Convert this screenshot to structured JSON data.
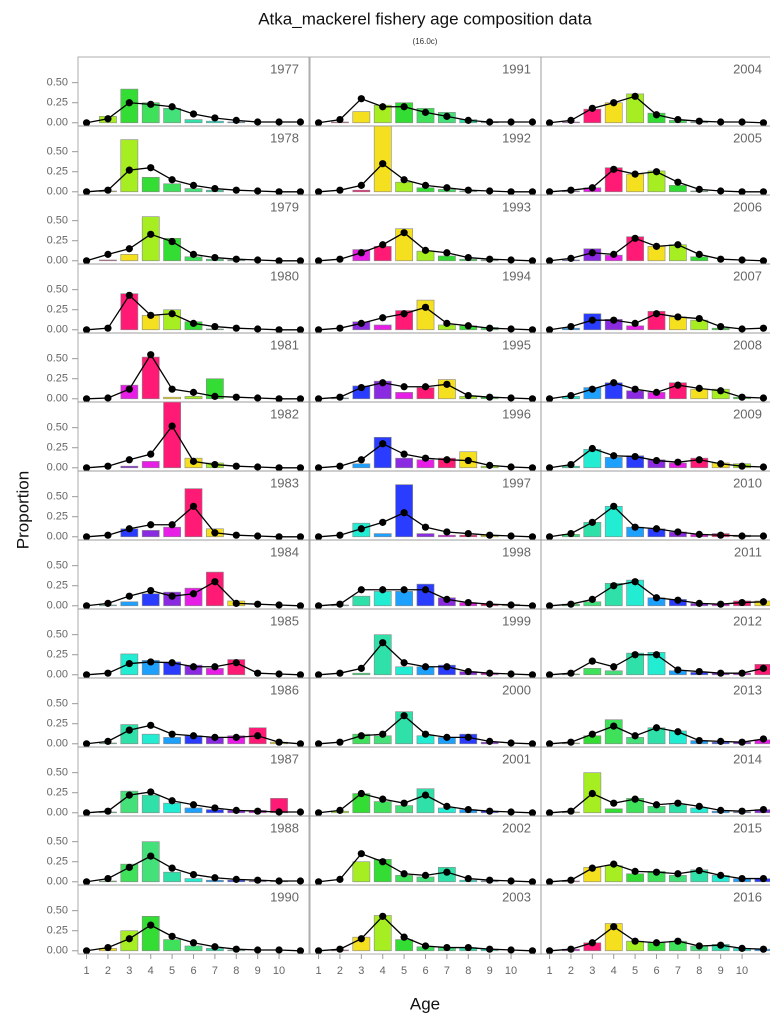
{
  "chart_data": {
    "type": "bar",
    "title": "Atka_mackerel fishery age composition data",
    "subtitle": "(16.0c)",
    "x_label": "Age",
    "y_label": "Proportion",
    "x": [
      1,
      2,
      3,
      4,
      5,
      6,
      7,
      8,
      9,
      10,
      11
    ],
    "xlim": [
      0.6,
      11.4
    ],
    "xticks": [
      1,
      2,
      3,
      4,
      5,
      6,
      7,
      8,
      9,
      10
    ],
    "ylim": [
      -0.04,
      0.82
    ],
    "yticks": [
      {
        "value": 0,
        "label": "0.00"
      },
      {
        "value": 0.25,
        "label": "0.25"
      },
      {
        "value": 0.5,
        "label": "0.50"
      }
    ],
    "palette": [
      "#2a3cff",
      "#1ea0ff",
      "#22ecd2",
      "#2fe0a8",
      "#44e07a",
      "#3fe05a",
      "#33dd33",
      "#a6ee22",
      "#f5e020",
      "#ff1a75",
      "#e61ee6",
      "#8a2be2"
    ],
    "line_color": "#000000",
    "panels": [
      {
        "label": "1977",
        "values": [
          0,
          0.08,
          0.42,
          0.25,
          0.18,
          0.04,
          0.02,
          0.01,
          0,
          0,
          0
        ],
        "fit": [
          0,
          0.05,
          0.25,
          0.23,
          0.2,
          0.11,
          0.06,
          0.03,
          0.01,
          0.01,
          0.01
        ]
      },
      {
        "label": "1978",
        "values": [
          0,
          0.01,
          0.65,
          0.18,
          0.1,
          0.04,
          0.02,
          0,
          0,
          0,
          0
        ],
        "fit": [
          0,
          0.02,
          0.27,
          0.3,
          0.15,
          0.08,
          0.04,
          0.02,
          0.01,
          0,
          0
        ]
      },
      {
        "label": "1979",
        "values": [
          0,
          0.01,
          0.08,
          0.55,
          0.28,
          0.05,
          0.02,
          0.01,
          0,
          0,
          0
        ],
        "fit": [
          0,
          0.08,
          0.15,
          0.33,
          0.24,
          0.08,
          0.04,
          0.02,
          0.01,
          0,
          0
        ]
      },
      {
        "label": "1980",
        "values": [
          0,
          0,
          0.45,
          0.18,
          0.25,
          0.1,
          0.01,
          0,
          0,
          0,
          0
        ],
        "fit": [
          0,
          0.02,
          0.43,
          0.18,
          0.2,
          0.08,
          0.04,
          0.02,
          0.01,
          0,
          0
        ]
      },
      {
        "label": "1981",
        "values": [
          0,
          0,
          0.17,
          0.52,
          0.02,
          0.03,
          0.25,
          0,
          0,
          0,
          0
        ],
        "fit": [
          0,
          0.01,
          0.12,
          0.55,
          0.12,
          0.08,
          0.03,
          0.02,
          0.01,
          0,
          0
        ]
      },
      {
        "label": "1982",
        "values": [
          0,
          0,
          0.02,
          0.08,
          0.9,
          0.12,
          0.06,
          0,
          0,
          0,
          0
        ],
        "fit": [
          0,
          0.02,
          0.1,
          0.17,
          0.52,
          0.08,
          0.04,
          0.02,
          0.01,
          0,
          0
        ]
      },
      {
        "label": "1983",
        "values": [
          0,
          0,
          0.1,
          0.08,
          0.12,
          0.6,
          0.1,
          0,
          0,
          0,
          0
        ],
        "fit": [
          0,
          0.02,
          0.1,
          0.15,
          0.15,
          0.38,
          0.05,
          0.02,
          0.01,
          0,
          0
        ]
      },
      {
        "label": "1984",
        "values": [
          0,
          0.01,
          0.05,
          0.15,
          0.17,
          0.22,
          0.42,
          0.06,
          0,
          0,
          0
        ],
        "fit": [
          0,
          0.03,
          0.12,
          0.19,
          0.12,
          0.15,
          0.3,
          0.03,
          0.02,
          0.01,
          0
        ]
      },
      {
        "label": "1985",
        "values": [
          0,
          0,
          0.26,
          0.18,
          0.16,
          0.12,
          0.08,
          0.19,
          0,
          0,
          0
        ],
        "fit": [
          0,
          0.02,
          0.14,
          0.16,
          0.15,
          0.1,
          0.1,
          0.15,
          0.02,
          0.01,
          0
        ]
      },
      {
        "label": "1986",
        "values": [
          0,
          0.01,
          0.24,
          0.12,
          0.08,
          0.1,
          0.08,
          0.1,
          0.2,
          0.02,
          0
        ],
        "fit": [
          0,
          0.03,
          0.17,
          0.23,
          0.12,
          0.1,
          0.08,
          0.08,
          0.1,
          0.02,
          0
        ]
      },
      {
        "label": "1987",
        "values": [
          0,
          0.01,
          0.27,
          0.22,
          0.12,
          0.06,
          0.04,
          0.03,
          0.03,
          0.18,
          0
        ],
        "fit": [
          0,
          0.02,
          0.22,
          0.26,
          0.15,
          0.1,
          0.06,
          0.03,
          0.02,
          0.01,
          0.01
        ]
      },
      {
        "label": "1988",
        "values": [
          0,
          0.01,
          0.22,
          0.5,
          0.12,
          0.04,
          0.02,
          0.02,
          0.01,
          0.01,
          0
        ],
        "fit": [
          0,
          0.04,
          0.18,
          0.32,
          0.17,
          0.09,
          0.05,
          0.03,
          0.02,
          0.01,
          0.01
        ]
      },
      {
        "label": "1990",
        "values": [
          0,
          0.03,
          0.25,
          0.43,
          0.14,
          0.06,
          0.03,
          0.01,
          0,
          0,
          0
        ],
        "fit": [
          0,
          0.04,
          0.15,
          0.32,
          0.18,
          0.1,
          0.05,
          0.02,
          0.01,
          0.01,
          0
        ]
      },
      {
        "label": "1991",
        "values": [
          0,
          0.01,
          0.14,
          0.22,
          0.25,
          0.18,
          0.13,
          0.04,
          0.01,
          0,
          0
        ],
        "fit": [
          0,
          0.04,
          0.3,
          0.2,
          0.2,
          0.13,
          0.08,
          0.03,
          0.01,
          0.01,
          0.01
        ]
      },
      {
        "label": "1992",
        "values": [
          0,
          0,
          0.02,
          0.85,
          0.12,
          0.05,
          0.03,
          0.01,
          0,
          0,
          0
        ],
        "fit": [
          0,
          0.02,
          0.08,
          0.35,
          0.15,
          0.08,
          0.05,
          0.02,
          0.01,
          0,
          0
        ]
      },
      {
        "label": "1993",
        "values": [
          0,
          0,
          0.14,
          0.18,
          0.4,
          0.12,
          0.06,
          0.02,
          0.01,
          0,
          0
        ],
        "fit": [
          0,
          0.02,
          0.1,
          0.2,
          0.35,
          0.13,
          0.1,
          0.04,
          0.02,
          0.01,
          0
        ]
      },
      {
        "label": "1994",
        "values": [
          0,
          0,
          0.1,
          0.06,
          0.24,
          0.37,
          0.06,
          0.05,
          0.03,
          0,
          0
        ],
        "fit": [
          0,
          0.02,
          0.08,
          0.15,
          0.2,
          0.28,
          0.08,
          0.05,
          0.02,
          0.01,
          0
        ]
      },
      {
        "label": "1995",
        "values": [
          0,
          0.01,
          0.16,
          0.22,
          0.08,
          0.14,
          0.24,
          0.03,
          0.02,
          0,
          0
        ],
        "fit": [
          0,
          0.02,
          0.14,
          0.2,
          0.15,
          0.15,
          0.18,
          0.04,
          0.02,
          0.01,
          0
        ]
      },
      {
        "label": "1996",
        "values": [
          0,
          0,
          0.05,
          0.38,
          0.12,
          0.1,
          0.12,
          0.2,
          0.02,
          0,
          0
        ],
        "fit": [
          0,
          0.02,
          0.1,
          0.3,
          0.17,
          0.12,
          0.1,
          0.09,
          0.03,
          0.01,
          0
        ]
      },
      {
        "label": "1997",
        "values": [
          0,
          0,
          0.17,
          0.04,
          0.65,
          0.04,
          0.02,
          0.02,
          0.02,
          0,
          0
        ],
        "fit": [
          0,
          0.02,
          0.1,
          0.18,
          0.3,
          0.12,
          0.06,
          0.04,
          0.02,
          0.01,
          0
        ]
      },
      {
        "label": "1998",
        "values": [
          0,
          0.01,
          0.12,
          0.18,
          0.18,
          0.27,
          0.1,
          0.04,
          0.02,
          0.02,
          0
        ],
        "fit": [
          0,
          0.02,
          0.2,
          0.2,
          0.2,
          0.2,
          0.08,
          0.04,
          0.02,
          0.01,
          0
        ]
      },
      {
        "label": "1999",
        "values": [
          0,
          0,
          0.02,
          0.5,
          0.1,
          0.1,
          0.12,
          0.04,
          0.02,
          0,
          0
        ],
        "fit": [
          0,
          0.02,
          0.08,
          0.4,
          0.15,
          0.1,
          0.1,
          0.04,
          0.02,
          0.01,
          0
        ]
      },
      {
        "label": "2000",
        "values": [
          0,
          0,
          0.12,
          0.1,
          0.4,
          0.1,
          0.08,
          0.12,
          0.02,
          0,
          0
        ],
        "fit": [
          0,
          0.02,
          0.1,
          0.12,
          0.35,
          0.12,
          0.08,
          0.08,
          0.03,
          0.01,
          0
        ]
      },
      {
        "label": "2001",
        "values": [
          0,
          0.02,
          0.24,
          0.14,
          0.09,
          0.3,
          0.06,
          0.04,
          0.02,
          0,
          0
        ],
        "fit": [
          0,
          0.03,
          0.24,
          0.17,
          0.12,
          0.22,
          0.08,
          0.04,
          0.02,
          0.01,
          0
        ]
      },
      {
        "label": "2002",
        "values": [
          0,
          0,
          0.25,
          0.28,
          0.08,
          0.06,
          0.18,
          0.02,
          0.01,
          0,
          0
        ],
        "fit": [
          0,
          0.03,
          0.35,
          0.25,
          0.1,
          0.08,
          0.12,
          0.04,
          0.02,
          0.01,
          0
        ]
      },
      {
        "label": "2003",
        "values": [
          0,
          0.01,
          0.17,
          0.44,
          0.14,
          0.05,
          0.04,
          0.04,
          0.02,
          0,
          0
        ],
        "fit": [
          0,
          0.02,
          0.15,
          0.43,
          0.17,
          0.06,
          0.04,
          0.04,
          0.02,
          0.01,
          0
        ]
      },
      {
        "label": "2004",
        "values": [
          0,
          0.01,
          0.17,
          0.25,
          0.36,
          0.12,
          0.03,
          0.01,
          0,
          0,
          0
        ],
        "fit": [
          0,
          0.03,
          0.18,
          0.25,
          0.33,
          0.1,
          0.04,
          0.02,
          0.01,
          0.01,
          0
        ]
      },
      {
        "label": "2005",
        "values": [
          0,
          0.01,
          0.05,
          0.3,
          0.22,
          0.26,
          0.08,
          0.01,
          0,
          0,
          0
        ],
        "fit": [
          0,
          0.02,
          0.05,
          0.28,
          0.22,
          0.25,
          0.12,
          0.03,
          0.01,
          0,
          0
        ]
      },
      {
        "label": "2006",
        "values": [
          0,
          0.01,
          0.15,
          0.07,
          0.3,
          0.18,
          0.2,
          0.05,
          0,
          0,
          0
        ],
        "fit": [
          0,
          0.03,
          0.1,
          0.08,
          0.28,
          0.18,
          0.2,
          0.08,
          0.02,
          0.01,
          0
        ]
      },
      {
        "label": "2007",
        "values": [
          0,
          0.02,
          0.2,
          0.13,
          0.05,
          0.23,
          0.16,
          0.12,
          0.02,
          0,
          0
        ],
        "fit": [
          0,
          0.04,
          0.12,
          0.12,
          0.08,
          0.2,
          0.16,
          0.14,
          0.04,
          0.01,
          0.02
        ]
      },
      {
        "label": "2008",
        "values": [
          0,
          0.03,
          0.14,
          0.2,
          0.1,
          0.08,
          0.2,
          0.12,
          0.12,
          0.02,
          0
        ],
        "fit": [
          0,
          0.04,
          0.12,
          0.2,
          0.12,
          0.08,
          0.17,
          0.13,
          0.1,
          0.02,
          0.01
        ]
      },
      {
        "label": "2009",
        "values": [
          0,
          0.02,
          0.23,
          0.13,
          0.15,
          0.1,
          0.06,
          0.12,
          0.06,
          0.05,
          0
        ],
        "fit": [
          0,
          0.04,
          0.24,
          0.15,
          0.14,
          0.09,
          0.07,
          0.1,
          0.05,
          0.02,
          0.01
        ]
      },
      {
        "label": "2010",
        "values": [
          0,
          0.03,
          0.18,
          0.38,
          0.12,
          0.1,
          0.06,
          0.03,
          0.04,
          0.02,
          0
        ],
        "fit": [
          0,
          0.04,
          0.18,
          0.38,
          0.12,
          0.1,
          0.06,
          0.03,
          0.02,
          0.01,
          0.01
        ]
      },
      {
        "label": "2011",
        "values": [
          0,
          0.02,
          0.05,
          0.28,
          0.32,
          0.1,
          0.08,
          0.03,
          0.02,
          0.06,
          0.06
        ],
        "fit": [
          0,
          0.02,
          0.08,
          0.25,
          0.3,
          0.1,
          0.07,
          0.03,
          0.02,
          0.04,
          0.05
        ]
      },
      {
        "label": "2012",
        "values": [
          0,
          0.01,
          0.08,
          0.05,
          0.27,
          0.28,
          0.05,
          0.03,
          0.02,
          0.02,
          0.13
        ],
        "fit": [
          0,
          0.02,
          0.17,
          0.1,
          0.25,
          0.25,
          0.06,
          0.04,
          0.02,
          0.02,
          0.08
        ]
      },
      {
        "label": "2013",
        "values": [
          0,
          0.01,
          0.1,
          0.3,
          0.08,
          0.2,
          0.16,
          0.04,
          0.02,
          0.02,
          0.05
        ],
        "fit": [
          0,
          0.02,
          0.12,
          0.22,
          0.1,
          0.2,
          0.15,
          0.04,
          0.03,
          0.02,
          0.06
        ]
      },
      {
        "label": "2014",
        "values": [
          0,
          0.01,
          0.5,
          0.05,
          0.18,
          0.08,
          0.1,
          0.06,
          0.02,
          0.01,
          0.04
        ],
        "fit": [
          0,
          0.02,
          0.24,
          0.12,
          0.17,
          0.1,
          0.12,
          0.08,
          0.03,
          0.02,
          0.04
        ]
      },
      {
        "label": "2015",
        "values": [
          0,
          0.01,
          0.18,
          0.2,
          0.1,
          0.13,
          0.08,
          0.15,
          0.08,
          0.04,
          0.04
        ],
        "fit": [
          0,
          0.02,
          0.17,
          0.22,
          0.13,
          0.12,
          0.1,
          0.14,
          0.08,
          0.04,
          0.04
        ]
      },
      {
        "label": "2016",
        "values": [
          0,
          0.02,
          0.1,
          0.34,
          0.12,
          0.1,
          0.12,
          0.06,
          0.08,
          0.03,
          0.02
        ],
        "fit": [
          0,
          0.02,
          0.1,
          0.3,
          0.12,
          0.1,
          0.12,
          0.06,
          0.07,
          0.03,
          0.02
        ]
      }
    ]
  }
}
